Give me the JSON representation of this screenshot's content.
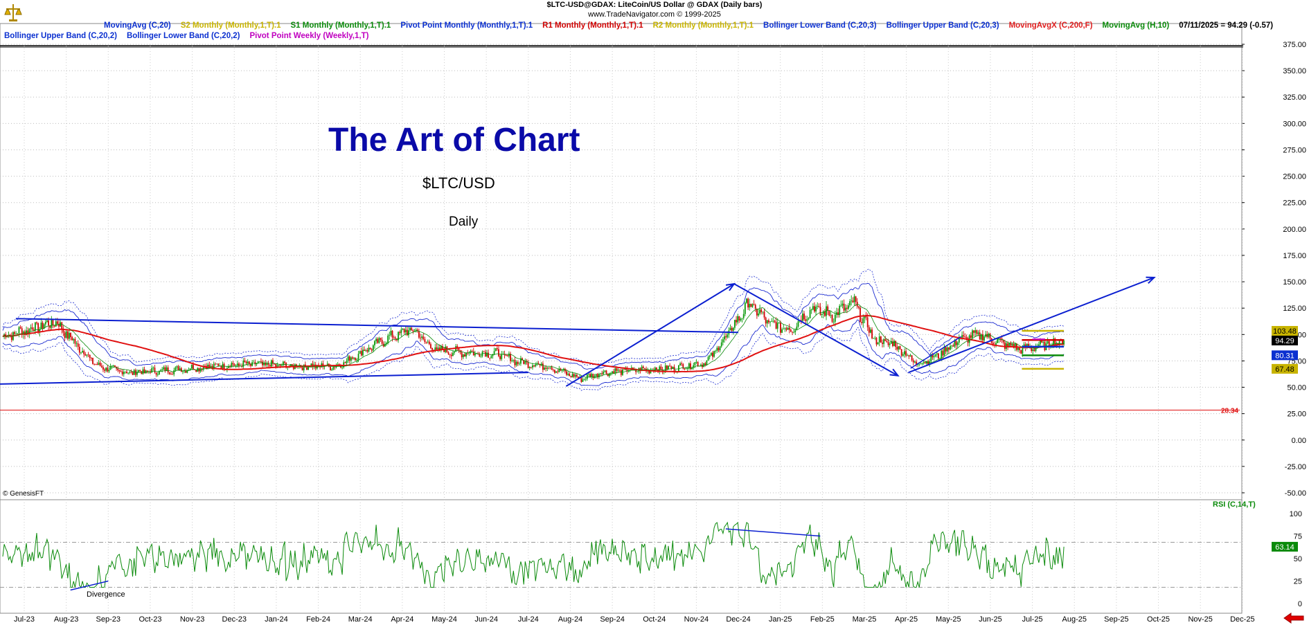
{
  "header": {
    "title_line": "$LTC-USD@GDAX:  LiteCoin/US Dollar @ GDAX  (Daily bars)",
    "site_line": "www.TradeNavigator.com © 1999-2025"
  },
  "legend_row1": [
    {
      "text": "MovingAvg (C,20)",
      "color": "#0b30d0"
    },
    {
      "text": "S2 Monthly (Monthly,1,T).1",
      "color": "#c8b400"
    },
    {
      "text": "S1 Monthly (Monthly,1,T).1",
      "color": "#0a8a0a"
    },
    {
      "text": "Pivot Point Monthly (Monthly,1,T).1",
      "color": "#0b30d0"
    },
    {
      "text": "R1 Monthly (Monthly,1,T).1",
      "color": "#d00000"
    },
    {
      "text": "R2 Monthly (Monthly,1,T).1",
      "color": "#c8b400"
    },
    {
      "text": "Bollinger Lower Band (C,20,3)",
      "color": "#0b30d0"
    },
    {
      "text": "Bollinger Upper Band (C,20,3)",
      "color": "#0b30d0"
    },
    {
      "text": "MovingAvgX (C,200,F)",
      "color": "#e02020"
    },
    {
      "text": "MovingAvg (H,10)",
      "color": "#0a8a0a"
    },
    {
      "text": "07/11/2025 = 94.29 (-0.57)",
      "color": "#000000"
    }
  ],
  "legend_row2": [
    {
      "text": "Bollinger Upper Band (C,20,2)",
      "color": "#0b30d0"
    },
    {
      "text": "Bollinger Lower Band (C,20,2)",
      "color": "#0b30d0"
    },
    {
      "text": "Pivot Point Weekly (Weekly,1,T)",
      "color": "#c000c0"
    }
  ],
  "annotations": {
    "title": "The Art of Chart",
    "symbol": "$LTC/USD",
    "timeframe": "Daily",
    "copyright": "© GenesisFT",
    "divergence": "Divergence",
    "rsi_label": "RSI (C,14,T)"
  },
  "chart_data": [
    {
      "type": "candlestick",
      "ylim": [
        -50,
        375
      ],
      "yticks": [
        "375.00",
        "350.00",
        "325.00",
        "300.00",
        "275.00",
        "250.00",
        "225.00",
        "200.00",
        "175.00",
        "150.00",
        "125.00",
        "100.00",
        "75.00",
        "50.00",
        "25.00",
        "0.00",
        "-25.00",
        "-50.00"
      ],
      "x_labels": [
        "Jul-23",
        "Aug-23",
        "Sep-23",
        "Oct-23",
        "Nov-23",
        "Dec-23",
        "Jan-24",
        "Feb-24",
        "Mar-24",
        "Apr-24",
        "May-24",
        "Jun-24",
        "Jul-24",
        "Aug-24",
        "Sep-24",
        "Oct-24",
        "Nov-24",
        "Dec-24",
        "Jan-25",
        "Feb-25",
        "Mar-25",
        "Apr-25",
        "May-25",
        "Jun-25",
        "Jul-25",
        "Aug-25",
        "Sep-25",
        "Oct-25",
        "Nov-25",
        "Dec-25"
      ],
      "close_path": [
        [
          "Jul-23",
          98
        ],
        [
          "Jul-23",
          112
        ],
        [
          "Aug-23",
          90
        ],
        [
          "Aug-23",
          70
        ],
        [
          "Sep-23",
          64
        ],
        [
          "Oct-23",
          66
        ],
        [
          "Nov-23",
          70
        ],
        [
          "Dec-23",
          72
        ],
        [
          "Jan-24",
          70
        ],
        [
          "Feb-24",
          70
        ],
        [
          "Mar-24",
          88
        ],
        [
          "Mar-24",
          98
        ],
        [
          "Apr-24",
          105
        ],
        [
          "Apr-24",
          86
        ],
        [
          "May-24",
          83
        ],
        [
          "Jun-24",
          82
        ],
        [
          "Jun-24",
          74
        ],
        [
          "Jul-24",
          70
        ],
        [
          "Aug-24",
          58
        ],
        [
          "Aug-24",
          64
        ],
        [
          "Sep-24",
          66
        ],
        [
          "Oct-24",
          68
        ],
        [
          "Nov-24",
          74
        ],
        [
          "Nov-24",
          100
        ],
        [
          "Dec-24",
          130
        ],
        [
          "Dec-24",
          110
        ],
        [
          "Jan-25",
          105
        ],
        [
          "Jan-25",
          125
        ],
        [
          "Feb-25",
          118
        ],
        [
          "Feb-25",
          130
        ],
        [
          "Mar-25",
          95
        ],
        [
          "Mar-25",
          90
        ],
        [
          "Apr-25",
          72
        ],
        [
          "Apr-25",
          80
        ],
        [
          "May-25",
          95
        ],
        [
          "May-25",
          100
        ],
        [
          "Jun-25",
          92
        ],
        [
          "Jun-25",
          86
        ],
        [
          "Jul-25",
          90
        ],
        [
          "Jul-25",
          94.29
        ]
      ],
      "last_price": 94.29,
      "price_labels": [
        {
          "text": "103.48",
          "value": 103.48,
          "bg": "#c8b400"
        },
        {
          "text": "94.29",
          "value": 94.29,
          "bg": "#000000"
        },
        {
          "text": "80.31",
          "value": 80.31,
          "bg": "#0b30d0"
        },
        {
          "text": "67.48",
          "value": 67.48,
          "bg": "#c8b400"
        },
        {
          "text": "28.34",
          "value": 28.34,
          "bg": "none"
        }
      ],
      "pivots": {
        "R2": 103.48,
        "R1": 94.8,
        "PP": 88.5,
        "S1": 80.31,
        "S2": 67.48
      },
      "hline_red": 28.34
    },
    {
      "type": "line",
      "name": "RSI (C,14,T)",
      "ylim": [
        0,
        100
      ],
      "yticks": [
        "100",
        "75",
        "50",
        "25",
        "0"
      ],
      "levels": [
        70,
        30
      ],
      "last_value": 63.14,
      "last_label": "63.14"
    }
  ]
}
